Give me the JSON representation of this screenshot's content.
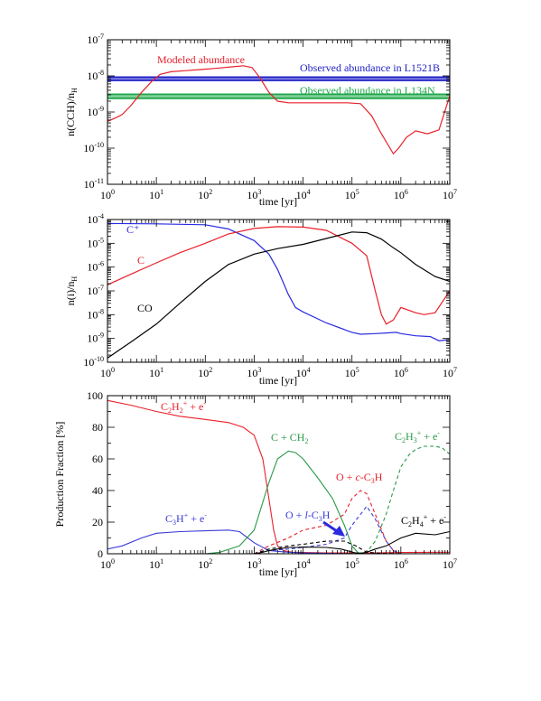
{
  "chart_data": [
    {
      "type": "line",
      "panel": "top",
      "x_scale": "log",
      "y_scale": "log",
      "xlim": [
        1,
        10000000
      ],
      "ylim": [
        1e-11,
        1e-07
      ],
      "xlabel": "time [yr]",
      "ylabel_base": "n(CCH)/n",
      "ylabel_sub": "H",
      "x_tick_labels": [
        {
          "b": "10",
          "e": "0",
          "value": 1
        },
        {
          "b": "10",
          "e": "1",
          "value": 10
        },
        {
          "b": "10",
          "e": "2",
          "value": 100
        },
        {
          "b": "10",
          "e": "3",
          "value": 1000
        },
        {
          "b": "10",
          "e": "4",
          "value": 10000
        },
        {
          "b": "10",
          "e": "5",
          "value": 100000
        },
        {
          "b": "10",
          "e": "6",
          "value": 1000000
        },
        {
          "b": "10",
          "e": "7",
          "value": 10000000
        }
      ],
      "y_tick_labels": [
        {
          "b": "10",
          "e": "-11",
          "value": 1e-11
        },
        {
          "b": "10",
          "e": "-10",
          "value": 1e-10
        },
        {
          "b": "10",
          "e": "-9",
          "value": 1e-09
        },
        {
          "b": "10",
          "e": "-8",
          "value": 1e-08
        },
        {
          "b": "10",
          "e": "-7",
          "value": 1e-07
        }
      ],
      "series": [
        {
          "name": "Modeled abundance",
          "color": "#e8202a",
          "x": [
            1,
            1.5,
            2,
            3,
            5,
            8,
            12,
            20,
            40,
            80,
            150,
            300,
            600,
            900,
            1300,
            2000,
            3000,
            5000,
            10000,
            30000,
            80000,
            150000,
            250000,
            400000,
            600000,
            700000,
            900000,
            1300000,
            2000000,
            3500000,
            6000000,
            10000000
          ],
          "y": [
            5.5e-10,
            7e-10,
            8.5e-10,
            1.5e-09,
            3.5e-09,
            7e-09,
            1.1e-08,
            1.3e-08,
            1.4e-08,
            1.5e-08,
            1.6e-08,
            1.75e-08,
            1.9e-08,
            1.7e-08,
            9e-09,
            3.5e-09,
            2e-09,
            1.8e-09,
            1.8e-09,
            1.8e-09,
            1.8e-09,
            1.7e-09,
            8e-10,
            2.5e-10,
            1e-10,
            7e-11,
            1e-10,
            2e-10,
            3e-10,
            2.5e-10,
            3.2e-10,
            2.8e-09
          ]
        }
      ],
      "bands": [
        {
          "name": "Observed abundance in L1521B",
          "color": "#2222c8",
          "y_low": 7.5e-09,
          "y_high": 9.2e-09
        },
        {
          "name": "Observed abundance in L134N",
          "color": "#1fa84a",
          "y_low": 2.4e-09,
          "y_high": 3.1e-09
        }
      ],
      "annotations": [
        {
          "text": "Modeled abundance",
          "color": "#e8202a"
        },
        {
          "text": "Observed abundance in L1521B",
          "color": "#2222c8"
        },
        {
          "text": "Observed abundance in L134N",
          "color": "#1fa84a"
        }
      ]
    },
    {
      "type": "line",
      "panel": "middle",
      "x_scale": "log",
      "y_scale": "log",
      "xlim": [
        1,
        10000000
      ],
      "ylim": [
        1e-10,
        0.0001
      ],
      "xlabel": "time [yr]",
      "ylabel_base": "n(i)/n",
      "ylabel_sub": "H",
      "x_tick_labels": [
        {
          "b": "10",
          "e": "0",
          "value": 1
        },
        {
          "b": "10",
          "e": "1",
          "value": 10
        },
        {
          "b": "10",
          "e": "2",
          "value": 100
        },
        {
          "b": "10",
          "e": "3",
          "value": 1000
        },
        {
          "b": "10",
          "e": "4",
          "value": 10000
        },
        {
          "b": "10",
          "e": "5",
          "value": 100000
        },
        {
          "b": "10",
          "e": "6",
          "value": 1000000
        },
        {
          "b": "10",
          "e": "7",
          "value": 10000000
        }
      ],
      "y_tick_labels": [
        {
          "b": "10",
          "e": "-10",
          "value": 1e-10
        },
        {
          "b": "10",
          "e": "-9",
          "value": 1e-09
        },
        {
          "b": "10",
          "e": "-8",
          "value": 1e-08
        },
        {
          "b": "10",
          "e": "-7",
          "value": 1e-07
        },
        {
          "b": "10",
          "e": "-6",
          "value": 1e-06
        },
        {
          "b": "10",
          "e": "-5",
          "value": 1e-05
        },
        {
          "b": "10",
          "e": "-4",
          "value": 0.0001
        }
      ],
      "series": [
        {
          "name": "C⁺",
          "color": "#2a2ae0",
          "x": [
            1,
            10,
            100,
            300,
            1000,
            2000,
            3000,
            5000,
            7000,
            10000,
            30000,
            100000,
            150000,
            300000,
            500000,
            800000,
            1000000,
            2000000,
            4000000,
            6000000,
            10000000
          ],
          "y": [
            6.8e-05,
            6.6e-05,
            6e-05,
            4e-05,
            1.3e-05,
            3.5e-06,
            8e-07,
            7e-08,
            2e-08,
            1.3e-08,
            4.5e-09,
            1.8e-09,
            1.5e-09,
            1.6e-09,
            1.7e-09,
            1.8e-09,
            1.6e-09,
            1.3e-09,
            1.2e-09,
            8e-10,
            9e-10
          ]
        },
        {
          "name": "C",
          "color": "#e8202a",
          "x": [
            1,
            3,
            10,
            30,
            100,
            300,
            1000,
            3000,
            10000,
            30000,
            100000,
            200000,
            300000,
            400000,
            500000,
            700000,
            1000000,
            2000000,
            3000000,
            5000000,
            10000000
          ],
          "y": [
            1.8e-07,
            5e-07,
            1.5e-06,
            4e-06,
            1e-05,
            2.5e-05,
            4.2e-05,
            5e-05,
            4.8e-05,
            3.5e-05,
            1e-05,
            3e-06,
            1e-07,
            1e-08,
            4e-09,
            6e-09,
            2e-08,
            1.2e-08,
            1e-08,
            1.2e-08,
            1e-07
          ]
        },
        {
          "name": "CO",
          "color": "#000000",
          "x": [
            1,
            3,
            10,
            30,
            100,
            300,
            1000,
            3000,
            10000,
            30000,
            100000,
            200000,
            400000,
            700000,
            1000000,
            2000000,
            5000000,
            10000000
          ],
          "y": [
            1.5e-10,
            7e-10,
            4e-09,
            3e-08,
            2.5e-07,
            1.3e-06,
            3.5e-06,
            6e-06,
            9e-06,
            1.6e-05,
            3e-05,
            2.8e-05,
            1.5e-05,
            6.5e-06,
            4e-06,
            1.3e-06,
            4e-07,
            2.5e-07
          ]
        }
      ],
      "annotations": [
        {
          "text": "C⁺",
          "color": "#2a2ae0"
        },
        {
          "text": "C",
          "color": "#e8202a"
        },
        {
          "text": "CO",
          "color": "#000000"
        }
      ]
    },
    {
      "type": "line",
      "panel": "bottom",
      "x_scale": "log",
      "y_scale": "linear",
      "xlim": [
        1,
        10000000
      ],
      "ylim": [
        0,
        100
      ],
      "xlabel": "time [yr]",
      "ylabel": "Production Fraction [%]",
      "x_tick_labels": [
        {
          "b": "10",
          "e": "0",
          "value": 1
        },
        {
          "b": "10",
          "e": "1",
          "value": 10
        },
        {
          "b": "10",
          "e": "2",
          "value": 100
        },
        {
          "b": "10",
          "e": "3",
          "value": 1000
        },
        {
          "b": "10",
          "e": "4",
          "value": 10000
        },
        {
          "b": "10",
          "e": "5",
          "value": 100000
        },
        {
          "b": "10",
          "e": "6",
          "value": 1000000
        },
        {
          "b": "10",
          "e": "7",
          "value": 10000000
        }
      ],
      "y_tick_labels": [
        {
          "text": "0",
          "value": 0
        },
        {
          "text": "20",
          "value": 20
        },
        {
          "text": "40",
          "value": 40
        },
        {
          "text": "60",
          "value": 60
        },
        {
          "text": "80",
          "value": 80
        },
        {
          "text": "100",
          "value": 100
        }
      ],
      "series": [
        {
          "name": "C₂H₂⁺ + e⁻",
          "color": "#e8202a",
          "dash": false,
          "x": [
            1,
            3,
            10,
            30,
            100,
            300,
            600,
            1000,
            1500,
            2000,
            2500,
            3000,
            4000,
            6000,
            10000,
            30000,
            100000,
            300000,
            1000000,
            10000000
          ],
          "y": [
            97,
            94,
            90,
            87,
            85,
            83,
            80,
            75,
            60,
            35,
            15,
            5,
            2,
            1,
            0.8,
            0.6,
            0.5,
            0.6,
            0.8,
            1
          ]
        },
        {
          "name": "C₃H⁺ + e⁻",
          "color": "#3a3ad8",
          "dash": false,
          "x": [
            1,
            2,
            5,
            10,
            30,
            100,
            300,
            500,
            1000,
            2000,
            5000,
            10000,
            100000,
            1000000,
            10000000
          ],
          "y": [
            3,
            5,
            10,
            13,
            14,
            14.5,
            15,
            14,
            7,
            2,
            1,
            0.5,
            0,
            0,
            0
          ]
        },
        {
          "name": "C + CH₂",
          "color": "#2a9a4a",
          "dash": false,
          "x": [
            100,
            200,
            500,
            1000,
            2000,
            3000,
            5000,
            7000,
            10000,
            20000,
            40000,
            70000,
            100000,
            130000,
            150000
          ],
          "y": [
            0,
            1,
            5,
            15,
            45,
            60,
            65,
            64,
            60,
            48,
            35,
            18,
            5,
            1,
            0
          ]
        },
        {
          "name": "C₂H₃⁺ + e⁻",
          "color": "#2a9a4a",
          "dash": true,
          "x": [
            100000,
            200000,
            300000,
            500000,
            700000,
            1000000,
            1500000,
            2000000,
            3000000,
            5000000,
            7000000,
            10000000
          ],
          "y": [
            0,
            1,
            8,
            25,
            40,
            55,
            63,
            66,
            68,
            68,
            67,
            63
          ]
        },
        {
          "name": "O + c-C₃H",
          "color": "#e8202a",
          "dash": true,
          "x": [
            1000,
            2000,
            5000,
            10000,
            30000,
            70000,
            100000,
            150000,
            200000,
            300000,
            500000,
            700000,
            1000000
          ],
          "y": [
            0,
            5,
            10,
            15,
            18,
            25,
            35,
            40,
            38,
            25,
            8,
            2,
            0
          ]
        },
        {
          "name": "O + l-C₃H",
          "color": "#3a3ad8",
          "dash": true,
          "x": [
            1000,
            2000,
            5000,
            10000,
            30000,
            70000,
            100000,
            150000,
            200000,
            300000,
            500000,
            700000,
            1000000
          ],
          "y": [
            0,
            2,
            3,
            4,
            6,
            10,
            18,
            25,
            30,
            22,
            8,
            2,
            0
          ]
        },
        {
          "name": "C₂H₄⁺ + e⁻",
          "color": "#000000",
          "dash": false,
          "x": [
            1000,
            1500,
            2000,
            3000,
            5000,
            7000,
            10000,
            30000,
            60000,
            90000,
            120000,
            150000,
            200000,
            300000,
            500000,
            1000000,
            2000000,
            5000000,
            10000000
          ],
          "y": [
            0,
            1,
            2,
            3,
            4,
            4,
            4.2,
            4,
            3,
            1.5,
            0.5,
            0.3,
            1,
            3,
            5,
            10,
            13,
            12,
            14
          ]
        }
      ],
      "extra_line": {
        "name": "unlabeled black dashed",
        "color": "#000000",
        "dash": true,
        "x": [
          1000,
          2000,
          5000,
          10000,
          30000,
          70000,
          120000,
          200000,
          400000,
          1000000
        ],
        "y": [
          0,
          3,
          5,
          6,
          8,
          8,
          5,
          1,
          0.3,
          0
        ]
      },
      "annotations": [
        {
          "key": "c2h2",
          "color": "#e8202a",
          "parts": [
            [
              "C",
              ""
            ],
            [
              "2",
              "sub"
            ],
            [
              "H",
              ""
            ],
            [
              "2",
              "sub"
            ],
            [
              "+",
              "sup"
            ],
            [
              " + e",
              ""
            ],
            [
              "-",
              "sup"
            ]
          ]
        },
        {
          "key": "cch2",
          "color": "#2a9a4a",
          "parts": [
            [
              "C + CH",
              ""
            ],
            [
              "2",
              "sub"
            ]
          ]
        },
        {
          "key": "c2h3",
          "color": "#2a9a4a",
          "parts": [
            [
              "C",
              ""
            ],
            [
              "2",
              "sub"
            ],
            [
              "H",
              ""
            ],
            [
              "3",
              "sub"
            ],
            [
              "+",
              "sup"
            ],
            [
              " + e",
              ""
            ],
            [
              "-",
              "sup"
            ]
          ]
        },
        {
          "key": "occ3h",
          "color": "#e8202a",
          "parts": [
            [
              "O + ",
              ""
            ],
            [
              "c",
              "it"
            ],
            [
              "-C",
              ""
            ],
            [
              "3",
              "sub"
            ],
            [
              "H",
              ""
            ]
          ]
        },
        {
          "key": "olc3h",
          "color": "#3a3ad8",
          "parts": [
            [
              "O + ",
              ""
            ],
            [
              "l",
              "it"
            ],
            [
              "-C",
              ""
            ],
            [
              "3",
              "sub"
            ],
            [
              "H",
              ""
            ]
          ]
        },
        {
          "key": "c3h",
          "color": "#3a3ad8",
          "parts": [
            [
              "C",
              ""
            ],
            [
              "3",
              "sub"
            ],
            [
              "H",
              ""
            ],
            [
              "+",
              "sup"
            ],
            [
              " + e",
              ""
            ],
            [
              "-",
              "sup"
            ]
          ]
        },
        {
          "key": "c2h4",
          "color": "#000000",
          "parts": [
            [
              "C",
              ""
            ],
            [
              "2",
              "sub"
            ],
            [
              "H",
              ""
            ],
            [
              "4",
              "sub"
            ],
            [
              "+",
              "sup"
            ],
            [
              " + e",
              ""
            ],
            [
              "-",
              "sup"
            ]
          ]
        }
      ]
    }
  ]
}
